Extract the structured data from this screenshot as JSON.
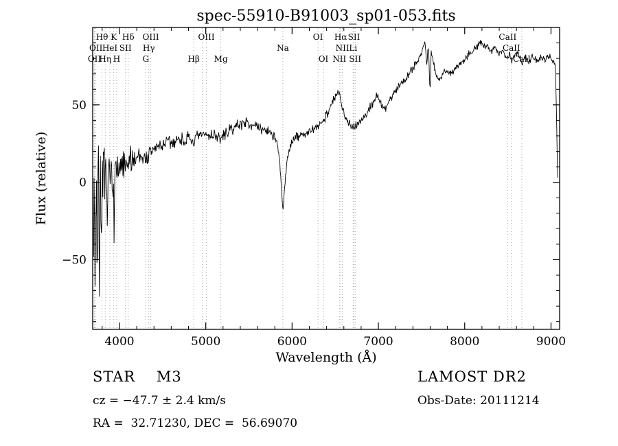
{
  "title": "spec-55910-B91003_sp01-053.fits",
  "axes": {
    "xlabel": "Wavelength (Å)",
    "ylabel": "Flux (relative)"
  },
  "annotations": {
    "class_line": "STAR    M3",
    "cz_line": "cz = −47.7 ± 2.4 km/s",
    "radec_line": "RA =  32.71230, DEC =  56.69070",
    "survey": "LAMOST DR2",
    "obs_date": "Obs-Date: 20111214"
  },
  "colors": {
    "spectrum": "#000000",
    "marker_line": "#aaaaaa",
    "background": "#ffffff"
  },
  "chart_data": {
    "type": "line",
    "title": "spec-55910-B91003_sp01-053.fits",
    "xlabel": "Wavelength (Å)",
    "ylabel": "Flux (relative)",
    "xlim": [
      3690,
      9100
    ],
    "ylim": [
      -95,
      100
    ],
    "x_ticks": [
      4000,
      5000,
      6000,
      7000,
      8000,
      9000
    ],
    "y_ticks": [
      -50,
      0,
      50
    ],
    "x_minor_step": 200,
    "y_minor_step": 10,
    "grid": false,
    "legend": "none",
    "continuum_anchors": [
      [
        3700,
        -5
      ],
      [
        3725,
        -15
      ],
      [
        3750,
        3
      ],
      [
        3775,
        -8
      ],
      [
        3800,
        -3
      ],
      [
        3825,
        6
      ],
      [
        3850,
        -4
      ],
      [
        3875,
        4
      ],
      [
        3900,
        6
      ],
      [
        3925,
        -2
      ],
      [
        3940,
        4
      ],
      [
        3955,
        10
      ],
      [
        3970,
        4
      ],
      [
        3990,
        10
      ],
      [
        4010,
        7
      ],
      [
        4040,
        12
      ],
      [
        4070,
        9
      ],
      [
        4100,
        12
      ],
      [
        4140,
        16
      ],
      [
        4180,
        15
      ],
      [
        4220,
        18
      ],
      [
        4260,
        17
      ],
      [
        4300,
        15
      ],
      [
        4340,
        17
      ],
      [
        4370,
        20
      ],
      [
        4410,
        22
      ],
      [
        4450,
        23
      ],
      [
        4500,
        24
      ],
      [
        4550,
        26
      ],
      [
        4600,
        25
      ],
      [
        4650,
        27
      ],
      [
        4700,
        28
      ],
      [
        4750,
        27
      ],
      [
        4800,
        28
      ],
      [
        4861,
        26
      ],
      [
        4900,
        29
      ],
      [
        4950,
        30
      ],
      [
        5000,
        31
      ],
      [
        5050,
        30
      ],
      [
        5100,
        31
      ],
      [
        5140,
        29
      ],
      [
        5175,
        28
      ],
      [
        5220,
        31
      ],
      [
        5270,
        33
      ],
      [
        5320,
        35
      ],
      [
        5370,
        37
      ],
      [
        5420,
        38
      ],
      [
        5460,
        39
      ],
      [
        5500,
        38
      ],
      [
        5550,
        37
      ],
      [
        5600,
        35
      ],
      [
        5650,
        34
      ],
      [
        5700,
        34
      ],
      [
        5750,
        32
      ],
      [
        5790,
        30
      ],
      [
        5820,
        26
      ],
      [
        5850,
        16
      ],
      [
        5875,
        -2
      ],
      [
        5893,
        -18
      ],
      [
        5910,
        -8
      ],
      [
        5935,
        10
      ],
      [
        5960,
        20
      ],
      [
        5990,
        26
      ],
      [
        6030,
        28
      ],
      [
        6080,
        30
      ],
      [
        6130,
        31
      ],
      [
        6180,
        32
      ],
      [
        6230,
        33
      ],
      [
        6280,
        35
      ],
      [
        6330,
        38
      ],
      [
        6380,
        42
      ],
      [
        6430,
        47
      ],
      [
        6470,
        52
      ],
      [
        6510,
        56
      ],
      [
        6540,
        58
      ],
      [
        6563,
        52
      ],
      [
        6590,
        47
      ],
      [
        6620,
        43
      ],
      [
        6650,
        39
      ],
      [
        6680,
        36
      ],
      [
        6710,
        37
      ],
      [
        6740,
        37
      ],
      [
        6780,
        39
      ],
      [
        6820,
        41
      ],
      [
        6860,
        44
      ],
      [
        6900,
        48
      ],
      [
        6950,
        53
      ],
      [
        6990,
        56
      ],
      [
        7020,
        52
      ],
      [
        7050,
        47
      ],
      [
        7090,
        49
      ],
      [
        7130,
        53
      ],
      [
        7170,
        57
      ],
      [
        7210,
        60
      ],
      [
        7250,
        63
      ],
      [
        7300,
        66
      ],
      [
        7350,
        70
      ],
      [
        7400,
        74
      ],
      [
        7450,
        78
      ],
      [
        7500,
        84
      ],
      [
        7540,
        91
      ],
      [
        7560,
        75
      ],
      [
        7580,
        89
      ],
      [
        7598,
        57
      ],
      [
        7612,
        84
      ],
      [
        7640,
        76
      ],
      [
        7670,
        70
      ],
      [
        7700,
        66
      ],
      [
        7740,
        69
      ],
      [
        7780,
        72
      ],
      [
        7820,
        70
      ],
      [
        7860,
        72
      ],
      [
        7900,
        74
      ],
      [
        7950,
        77
      ],
      [
        8000,
        80
      ],
      [
        8050,
        83
      ],
      [
        8100,
        86
      ],
      [
        8150,
        88
      ],
      [
        8200,
        90
      ],
      [
        8240,
        86
      ],
      [
        8270,
        89
      ],
      [
        8310,
        84
      ],
      [
        8350,
        87
      ],
      [
        8400,
        84
      ],
      [
        8450,
        85
      ],
      [
        8498,
        79
      ],
      [
        8520,
        84
      ],
      [
        8542,
        78
      ],
      [
        8580,
        83
      ],
      [
        8620,
        84
      ],
      [
        8662,
        77
      ],
      [
        8700,
        82
      ],
      [
        8740,
        78
      ],
      [
        8780,
        81
      ],
      [
        8830,
        78
      ],
      [
        8880,
        81
      ],
      [
        8930,
        79
      ],
      [
        8980,
        81
      ],
      [
        9020,
        79
      ],
      [
        9050,
        76
      ],
      [
        9065,
        40
      ],
      [
        9078,
        2
      ]
    ],
    "noise_amplitude_anchors": [
      [
        3690,
        48
      ],
      [
        3740,
        42
      ],
      [
        3790,
        36
      ],
      [
        3840,
        30
      ],
      [
        3890,
        24
      ],
      [
        3940,
        19
      ],
      [
        3990,
        15
      ],
      [
        4050,
        12
      ],
      [
        4120,
        10
      ],
      [
        4250,
        8
      ],
      [
        4400,
        7
      ],
      [
        4600,
        6
      ],
      [
        4900,
        5
      ],
      [
        5300,
        4.5
      ],
      [
        5800,
        4
      ],
      [
        6300,
        4
      ],
      [
        6800,
        3.5
      ],
      [
        7300,
        3.5
      ],
      [
        7800,
        3
      ],
      [
        8400,
        3
      ],
      [
        9100,
        3
      ]
    ],
    "spectral_lines": [
      {
        "wavelength": 3710,
        "label": "OII",
        "row": 2
      },
      {
        "wavelength": 3727,
        "label": "OII",
        "row": 1
      },
      {
        "wavelength": 3798,
        "label": "Hθ",
        "row": 0
      },
      {
        "wavelength": 3835,
        "label": "Hη",
        "row": 2
      },
      {
        "wavelength": 3889,
        "label": "HeI",
        "row": 1
      },
      {
        "wavelength": 3934,
        "label": "K",
        "row": 0
      },
      {
        "wavelength": 3968,
        "label": "H",
        "row": 2
      },
      {
        "wavelength": 4070,
        "label": "SII",
        "row": 1
      },
      {
        "wavelength": 4102,
        "label": "Hδ",
        "row": 0
      },
      {
        "wavelength": 4305,
        "label": "G",
        "row": 2
      },
      {
        "wavelength": 4340,
        "label": "Hγ",
        "row": 1
      },
      {
        "wavelength": 4363,
        "label": "OIII",
        "row": 0
      },
      {
        "wavelength": 4861,
        "label": "Hβ",
        "row": 2
      },
      {
        "wavelength": 4959,
        "label": "",
        "row": 0
      },
      {
        "wavelength": 5007,
        "label": "OIII",
        "row": 0
      },
      {
        "wavelength": 5175,
        "label": "Mg",
        "row": 2
      },
      {
        "wavelength": 5893,
        "label": "Na",
        "row": 1
      },
      {
        "wavelength": 6300,
        "label": "OI",
        "row": 0
      },
      {
        "wavelength": 6363,
        "label": "OI",
        "row": 2
      },
      {
        "wavelength": 6548,
        "label": "NII",
        "row": 2
      },
      {
        "wavelength": 6563,
        "label": "Hα",
        "row": 0
      },
      {
        "wavelength": 6583,
        "label": "NII",
        "row": 1
      },
      {
        "wavelength": 6708,
        "label": "Li",
        "row": 1
      },
      {
        "wavelength": 6717,
        "label": "SII",
        "row": 0
      },
      {
        "wavelength": 6731,
        "label": "SII",
        "row": 2
      },
      {
        "wavelength": 8498,
        "label": "CaII",
        "row": 0
      },
      {
        "wavelength": 8542,
        "label": "CaII",
        "row": 1
      },
      {
        "wavelength": 8662,
        "label": "CaII",
        "row": 2
      }
    ]
  }
}
